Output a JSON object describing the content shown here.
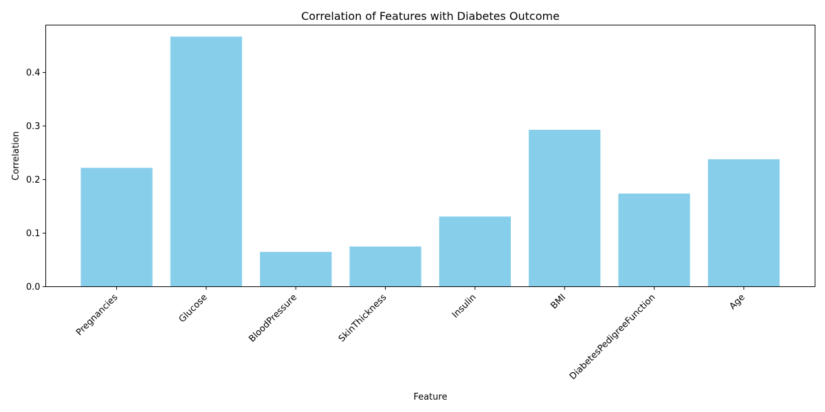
{
  "chart_data": {
    "type": "bar",
    "title": "Correlation of Features with Diabetes Outcome",
    "xlabel": "Feature",
    "ylabel": "Correlation",
    "categories": [
      "Pregnancies",
      "Glucose",
      "BloodPressure",
      "SkinThickness",
      "Insulin",
      "BMI",
      "DiabetesPedigreeFunction",
      "Age"
    ],
    "values": [
      0.222,
      0.467,
      0.065,
      0.075,
      0.131,
      0.293,
      0.174,
      0.238
    ],
    "ylim": [
      0,
      0.4886
    ],
    "yticks": [
      "0.0",
      "0.1",
      "0.2",
      "0.3",
      "0.4"
    ],
    "bar_color": "#87CEEB",
    "grid": false,
    "legend": "none"
  }
}
